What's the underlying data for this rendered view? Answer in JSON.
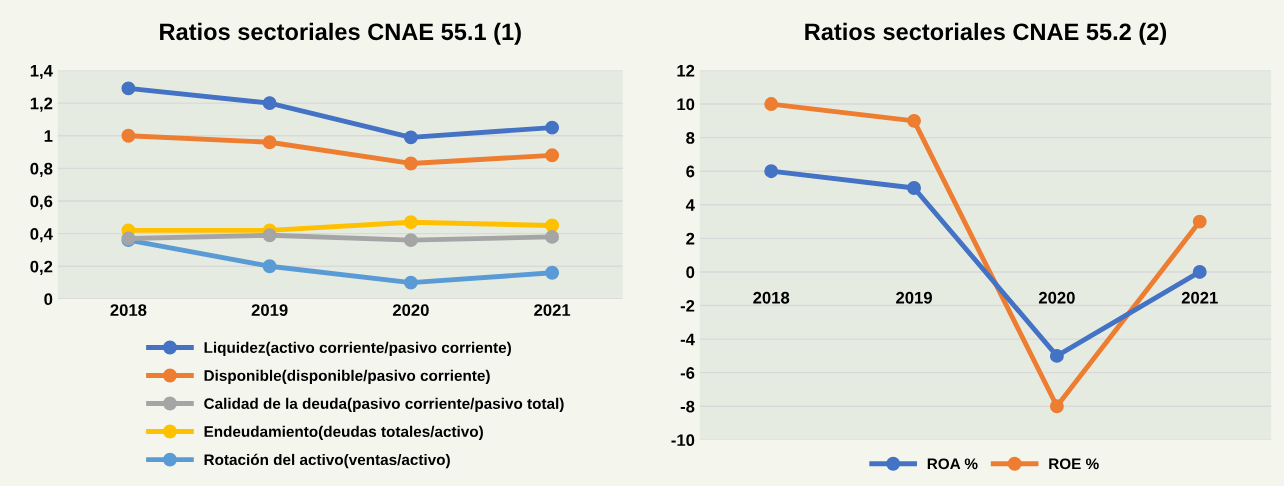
{
  "chart_data": [
    {
      "type": "line",
      "title": "Ratios sectoriales CNAE 55.1 (1)",
      "categories": [
        "2018",
        "2019",
        "2020",
        "2021"
      ],
      "series": [
        {
          "name": "Liquidez(activo corriente/pasivo corriente)",
          "color": "#4472c4",
          "values": [
            1.29,
            1.2,
            0.99,
            1.05
          ]
        },
        {
          "name": "Disponible(disponible/pasivo corriente)",
          "color": "#ed7d31",
          "values": [
            1.0,
            0.96,
            0.83,
            0.88
          ]
        },
        {
          "name": "Calidad de la deuda(pasivo corriente/pasivo total)",
          "color": "#a5a5a5",
          "values": [
            0.37,
            0.39,
            0.36,
            0.38
          ]
        },
        {
          "name": "Endeudamiento(deudas totales/activo)",
          "color": "#ffc000",
          "values": [
            0.42,
            0.42,
            0.47,
            0.45
          ]
        },
        {
          "name": "Rotación del activo(ventas/activo)",
          "color": "#5b9bd5",
          "values": [
            0.36,
            0.2,
            0.1,
            0.16
          ]
        }
      ],
      "ylim": [
        0,
        1.4
      ],
      "yticks": [
        0,
        {
          "value": 0.2,
          "label": "0,2"
        },
        {
          "value": 0.4,
          "label": "0,4"
        },
        {
          "value": 0.6,
          "label": "0,6"
        },
        {
          "value": 0.8,
          "label": "0,8"
        },
        1,
        {
          "value": 1.2,
          "label": "1,2"
        },
        {
          "value": 1.4,
          "label": "1,4"
        }
      ],
      "grid": "y",
      "legend": "bottom",
      "marker": "circle",
      "line_style": "solid"
    },
    {
      "type": "line",
      "title": "Ratios sectoriales CNAE 55.2 (2)",
      "categories": [
        "2018",
        "2019",
        "2020",
        "2021"
      ],
      "series": [
        {
          "name": "ROA %",
          "color": "#4472c4",
          "values": [
            6,
            5,
            -5,
            0
          ]
        },
        {
          "name": "ROE %",
          "color": "#ed7d31",
          "values": [
            10,
            9,
            -8,
            3
          ]
        }
      ],
      "ylim": [
        -10,
        12
      ],
      "yticks": [
        -10,
        -8,
        -6,
        -4,
        -2,
        0,
        2,
        4,
        6,
        8,
        10,
        12
      ],
      "grid": "y",
      "legend": "bottom",
      "marker": "circle",
      "line_style": "solid"
    }
  ]
}
